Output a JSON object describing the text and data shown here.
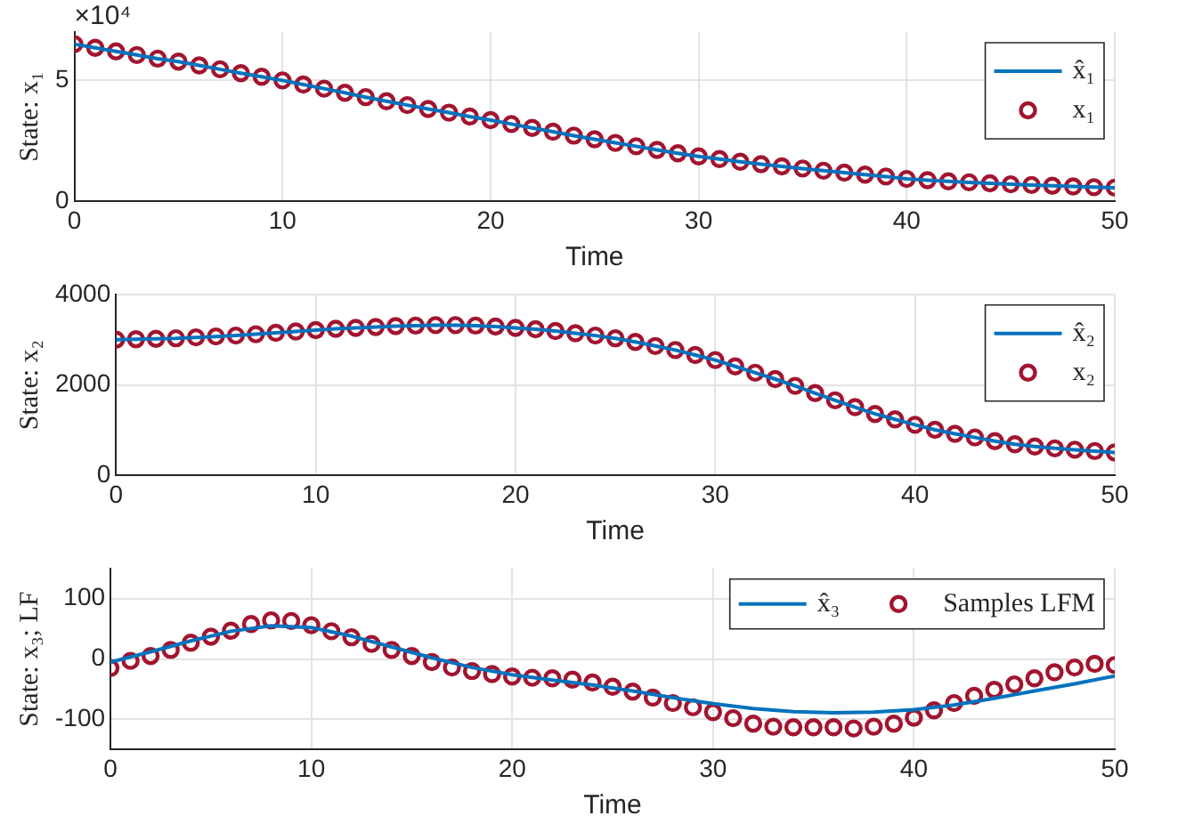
{
  "chart_data": [
    {
      "type": "line",
      "xlabel": "Time",
      "ylabel": "State: x₁",
      "annotations": [
        "×10⁴"
      ],
      "xlim": [
        0,
        50
      ],
      "xticks": [
        0,
        10,
        20,
        30,
        40,
        50
      ],
      "ylim": [
        0,
        7
      ],
      "yticks": [
        0,
        5
      ],
      "grid": true,
      "legend": "top right",
      "x": [
        0,
        1,
        2,
        3,
        4,
        5,
        6,
        7,
        8,
        9,
        10,
        11,
        12,
        13,
        14,
        15,
        16,
        17,
        18,
        19,
        20,
        21,
        22,
        23,
        24,
        25,
        26,
        27,
        28,
        29,
        30,
        31,
        32,
        33,
        34,
        35,
        36,
        37,
        38,
        39,
        40,
        41,
        42,
        43,
        44,
        45,
        46,
        47,
        48,
        49,
        50
      ],
      "series": [
        {
          "name": "x̂₁",
          "type": "line",
          "color": "#0072bd",
          "values": [
            6.5,
            6.35,
            6.2,
            6.05,
            5.9,
            5.78,
            5.62,
            5.46,
            5.3,
            5.15,
            5.0,
            4.83,
            4.66,
            4.49,
            4.31,
            4.14,
            3.98,
            3.82,
            3.67,
            3.51,
            3.36,
            3.2,
            3.04,
            2.88,
            2.72,
            2.57,
            2.42,
            2.28,
            2.13,
            1.99,
            1.86,
            1.75,
            1.64,
            1.54,
            1.45,
            1.36,
            1.27,
            1.19,
            1.11,
            1.03,
            0.93,
            0.88,
            0.83,
            0.79,
            0.75,
            0.71,
            0.68,
            0.65,
            0.62,
            0.59,
            0.57
          ]
        },
        {
          "name": "x₁",
          "type": "scatter",
          "marker": "circle",
          "color": "#a2142f",
          "values": [
            6.5,
            6.35,
            6.2,
            6.05,
            5.9,
            5.78,
            5.62,
            5.46,
            5.3,
            5.15,
            5.0,
            4.83,
            4.66,
            4.49,
            4.31,
            4.14,
            3.98,
            3.82,
            3.67,
            3.51,
            3.36,
            3.2,
            3.04,
            2.88,
            2.72,
            2.57,
            2.42,
            2.28,
            2.13,
            1.99,
            1.86,
            1.75,
            1.64,
            1.54,
            1.45,
            1.36,
            1.27,
            1.19,
            1.11,
            1.03,
            0.93,
            0.88,
            0.83,
            0.79,
            0.75,
            0.71,
            0.68,
            0.65,
            0.62,
            0.59,
            0.57
          ]
        }
      ]
    },
    {
      "type": "line",
      "xlabel": "Time",
      "ylabel": "State: x₂",
      "xlim": [
        0,
        50
      ],
      "xticks": [
        0,
        10,
        20,
        30,
        40,
        50
      ],
      "ylim": [
        0,
        4000
      ],
      "yticks": [
        0,
        2000,
        4000
      ],
      "grid": true,
      "legend": "top right",
      "x": [
        0,
        1,
        2,
        3,
        4,
        5,
        6,
        7,
        8,
        9,
        10,
        11,
        12,
        13,
        14,
        15,
        16,
        17,
        18,
        19,
        20,
        21,
        22,
        23,
        24,
        25,
        26,
        27,
        28,
        29,
        30,
        31,
        32,
        33,
        34,
        35,
        36,
        37,
        38,
        39,
        40,
        41,
        42,
        43,
        44,
        45,
        46,
        47,
        48,
        49,
        50
      ],
      "series": [
        {
          "name": "x̂₂",
          "type": "line",
          "color": "#0072bd",
          "values": [
            3000,
            3010,
            3020,
            3030,
            3050,
            3070,
            3090,
            3120,
            3150,
            3180,
            3210,
            3240,
            3260,
            3280,
            3300,
            3310,
            3320,
            3320,
            3310,
            3290,
            3260,
            3230,
            3190,
            3140,
            3090,
            3030,
            2950,
            2860,
            2770,
            2660,
            2550,
            2410,
            2270,
            2130,
            1980,
            1820,
            1660,
            1510,
            1360,
            1240,
            1120,
            1010,
            920,
            840,
            760,
            690,
            640,
            600,
            570,
            540,
            510
          ]
        },
        {
          "name": "x₂",
          "type": "scatter",
          "marker": "circle",
          "color": "#a2142f",
          "values": [
            3000,
            3010,
            3020,
            3030,
            3050,
            3070,
            3090,
            3120,
            3150,
            3180,
            3210,
            3240,
            3260,
            3280,
            3300,
            3310,
            3320,
            3320,
            3310,
            3290,
            3260,
            3230,
            3190,
            3140,
            3090,
            3030,
            2950,
            2860,
            2770,
            2660,
            2550,
            2410,
            2270,
            2130,
            1980,
            1820,
            1660,
            1510,
            1360,
            1240,
            1120,
            1010,
            920,
            840,
            760,
            690,
            640,
            600,
            570,
            540,
            510
          ]
        }
      ]
    },
    {
      "type": "line",
      "xlabel": "Time",
      "ylabel": "State: x₃; LF",
      "xlim": [
        0,
        50
      ],
      "xticks": [
        0,
        10,
        20,
        30,
        40,
        50
      ],
      "ylim": [
        -150,
        150
      ],
      "yticks": [
        -100,
        0,
        100
      ],
      "grid": true,
      "legend": "top right",
      "x": [
        0,
        1,
        2,
        3,
        4,
        5,
        6,
        7,
        8,
        9,
        10,
        11,
        12,
        13,
        14,
        15,
        16,
        17,
        18,
        19,
        20,
        21,
        22,
        23,
        24,
        25,
        26,
        27,
        28,
        29,
        30,
        31,
        32,
        33,
        34,
        35,
        36,
        37,
        38,
        39,
        40,
        41,
        42,
        43,
        44,
        45,
        46,
        47,
        48,
        49,
        50
      ],
      "series": [
        {
          "name": "x̂₃",
          "type": "line",
          "color": "#0072bd",
          "x": [
            0,
            2,
            4,
            6,
            8,
            10,
            12,
            14,
            16,
            18,
            20,
            22,
            24,
            26,
            28,
            30,
            32,
            34,
            36,
            38,
            40,
            42,
            44,
            46,
            48,
            50
          ],
          "values": [
            -5,
            12,
            30,
            46,
            55,
            52,
            38,
            20,
            2,
            -14,
            -26,
            -35,
            -43,
            -53,
            -64,
            -74,
            -82,
            -87,
            -89,
            -88,
            -84,
            -76,
            -65,
            -53,
            -41,
            -28
          ]
        },
        {
          "name": "Samples LFM",
          "type": "scatter",
          "marker": "circle",
          "color": "#a2142f",
          "values": [
            -15,
            -3,
            5,
            15,
            27,
            37,
            47,
            58,
            64,
            63,
            56,
            46,
            36,
            25,
            15,
            5,
            -5,
            -14,
            -20,
            -25,
            -29,
            -31,
            -32,
            -34,
            -39,
            -46,
            -54,
            -64,
            -73,
            -80,
            -88,
            -98,
            -107,
            -112,
            -113,
            -113,
            -113,
            -115,
            -112,
            -107,
            -97,
            -85,
            -73,
            -61,
            -51,
            -42,
            -32,
            -22,
            -14,
            -8,
            -10
          ]
        }
      ]
    }
  ]
}
